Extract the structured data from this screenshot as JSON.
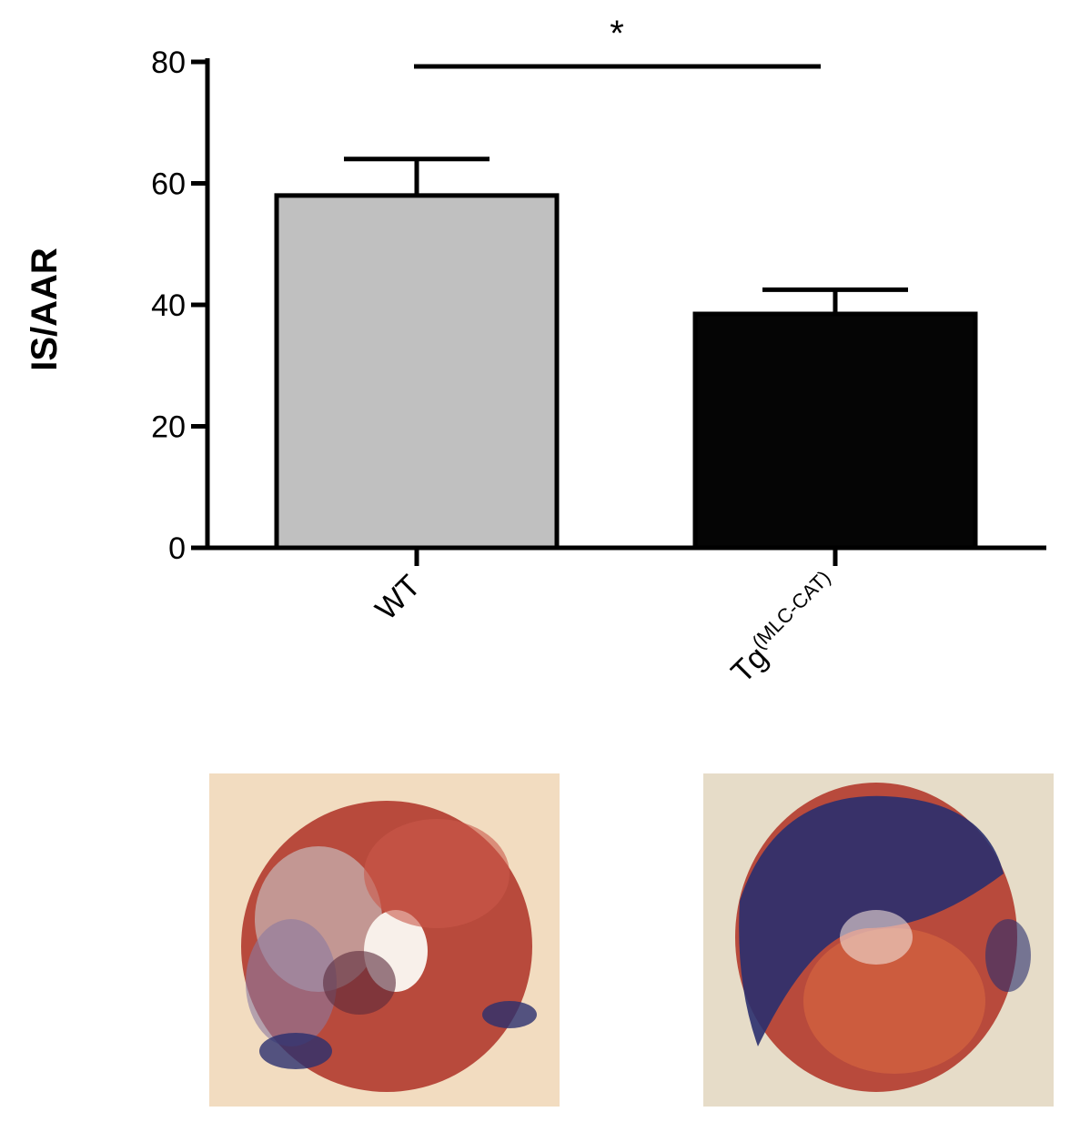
{
  "chart_data": {
    "type": "bar",
    "categories": [
      "WT",
      "Tg(MLC-CAT)"
    ],
    "category_labels": [
      {
        "main": "WT",
        "sup": ""
      },
      {
        "main": "Tg",
        "sup": "(MLC-CAT)"
      }
    ],
    "values": [
      58,
      38.5
    ],
    "errors": [
      6,
      4
    ],
    "bar_colors": [
      "#c0c0c0",
      "#050505"
    ],
    "ylabel": "IS/AAR",
    "xlabel": "",
    "title": "",
    "ylim": [
      0,
      80
    ],
    "yticks": [
      0,
      20,
      40,
      60,
      80
    ],
    "significance": {
      "label": "*",
      "between": [
        "WT",
        "Tg(MLC-CAT)"
      ]
    },
    "grid": false,
    "legend": "none"
  },
  "images": {
    "colors": {
      "wt_background": "#f2dcc0",
      "tg_background": "#e6dcc8",
      "tissue_red": "#b84a3c",
      "stain_blue": "#2a2f6e"
    }
  }
}
